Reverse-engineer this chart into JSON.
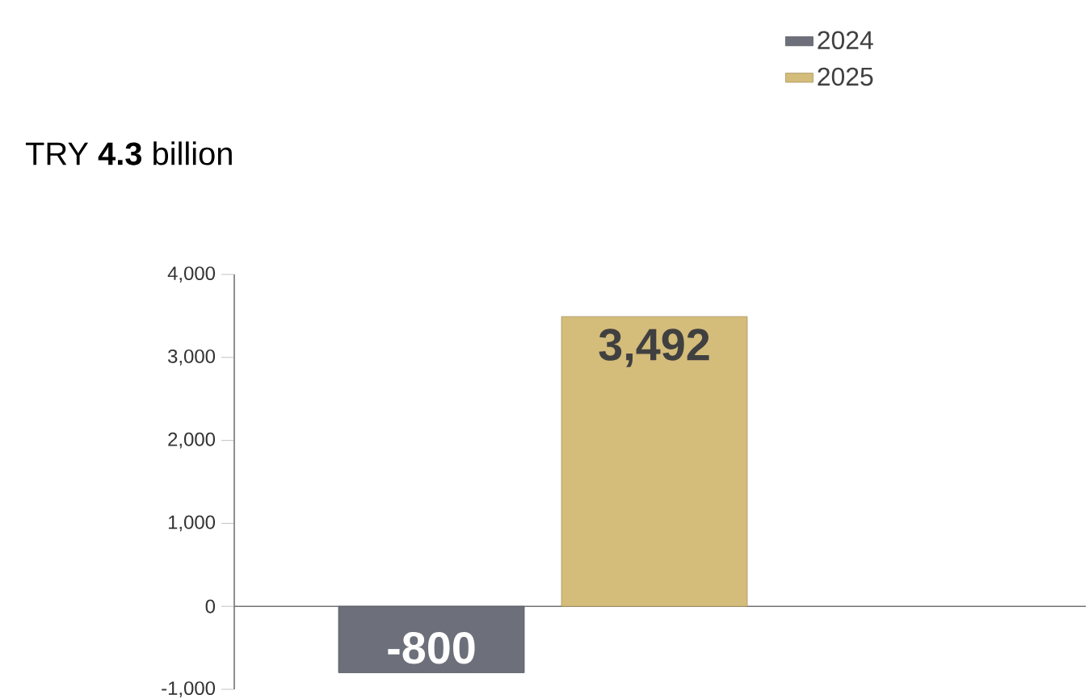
{
  "chart_data": {
    "type": "bar",
    "title": "TRY **4.3** billion",
    "categories": [
      null
    ],
    "series": [
      {
        "name": "2024",
        "color": "#6d707a",
        "values": [
          -800
        ],
        "value_labels": [
          "-800"
        ]
      },
      {
        "name": "2025",
        "color": "#d4bc7a",
        "values": [
          3492
        ],
        "value_labels": [
          "3,492"
        ]
      }
    ],
    "ylim": [
      -1000,
      4000
    ],
    "yticks": [
      {
        "value": -1000,
        "label": "-1,000"
      },
      0,
      {
        "value": 1000,
        "label": "1,000"
      },
      {
        "value": 2000,
        "label": "2,000"
      },
      {
        "value": 3000,
        "label": "3,000"
      },
      {
        "value": 4000,
        "label": "4,000"
      }
    ],
    "legend": "top right"
  }
}
